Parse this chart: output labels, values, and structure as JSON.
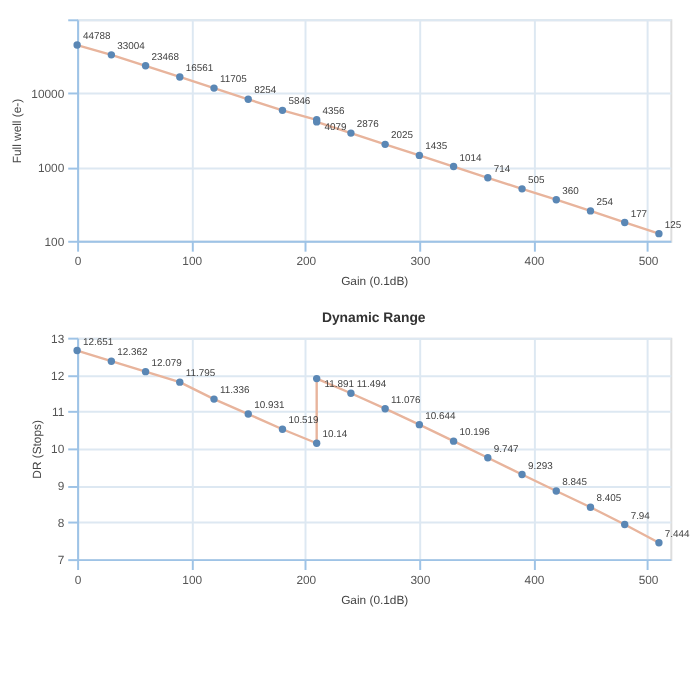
{
  "chart_data": [
    {
      "type": "line",
      "xlabel": "Gain (0.1dB)",
      "ylabel": "Full well (e-)",
      "log": "y",
      "grid": true,
      "x": [
        0,
        30,
        60,
        90,
        120,
        150,
        180,
        210,
        210,
        240,
        270,
        300,
        330,
        360,
        390,
        420,
        450,
        480,
        510
      ],
      "xlim": [
        0,
        520
      ],
      "xticks": [
        0,
        100,
        200,
        300,
        400,
        500
      ],
      "ylim": [
        100,
        100000
      ],
      "yticks": [
        100,
        1000,
        10000,
        {
          "value": 100000,
          "label": null
        }
      ],
      "series": [
        {
          "color": "#e8b49c",
          "marker": "none",
          "values": [
            44788,
            33004,
            23468,
            16561,
            11705,
            8254,
            5846,
            4356,
            4079,
            2876,
            2025,
            1435,
            1014,
            714,
            505,
            360,
            254,
            177,
            125
          ]
        },
        {
          "type": "scatter",
          "color": "#5a87b5",
          "marker": "circle",
          "values": [
            44788,
            33004,
            23468,
            16561,
            11705,
            8254,
            5846,
            4356,
            4079,
            2876,
            2025,
            1435,
            1014,
            714,
            505,
            360,
            254,
            177,
            125
          ],
          "value_labels": [
            "44788",
            "33004",
            "23468",
            "16561",
            "11705",
            "8254",
            "5846",
            "4356",
            "4079",
            "2876",
            "2025",
            "1435",
            "1014",
            "714",
            "505",
            "360",
            "254",
            "177",
            "125"
          ]
        }
      ]
    },
    {
      "type": "line",
      "title": "Dynamic Range",
      "xlabel": "Gain (0.1dB)",
      "ylabel": "DR (Stops)",
      "grid": true,
      "x": [
        0,
        30,
        60,
        90,
        120,
        150,
        180,
        210,
        210,
        240,
        270,
        300,
        330,
        360,
        390,
        420,
        450,
        480,
        510
      ],
      "xlim": [
        0,
        520
      ],
      "xticks": [
        0,
        100,
        200,
        300,
        400,
        500
      ],
      "ylim": [
        7,
        13
      ],
      "yticks": [
        7,
        8,
        9,
        10,
        11,
        12,
        13
      ],
      "series": [
        {
          "color": "#e8b49c",
          "marker": "none",
          "values": [
            12.651,
            12.362,
            12.079,
            11.795,
            11.336,
            10.931,
            10.519,
            10.14,
            11.891,
            11.494,
            11.076,
            10.644,
            10.196,
            9.747,
            9.293,
            8.845,
            8.405,
            7.94,
            7.444
          ]
        },
        {
          "type": "scatter",
          "color": "#5a87b5",
          "marker": "circle",
          "values": [
            12.651,
            12.362,
            12.079,
            11.795,
            11.336,
            10.931,
            10.519,
            10.14,
            11.891,
            11.494,
            11.076,
            10.644,
            10.196,
            9.747,
            9.293,
            8.845,
            8.405,
            7.94,
            7.444
          ],
          "value_labels": [
            "12.651",
            "12.362",
            "12.079",
            "11.795",
            "11.336",
            "10.931",
            "10.519",
            "10.14",
            "11.891",
            "11.494",
            "11.076",
            "10.644",
            "10.196",
            "9.747",
            "9.293",
            "8.845",
            "8.405",
            "7.94",
            "7.444"
          ]
        }
      ]
    }
  ]
}
